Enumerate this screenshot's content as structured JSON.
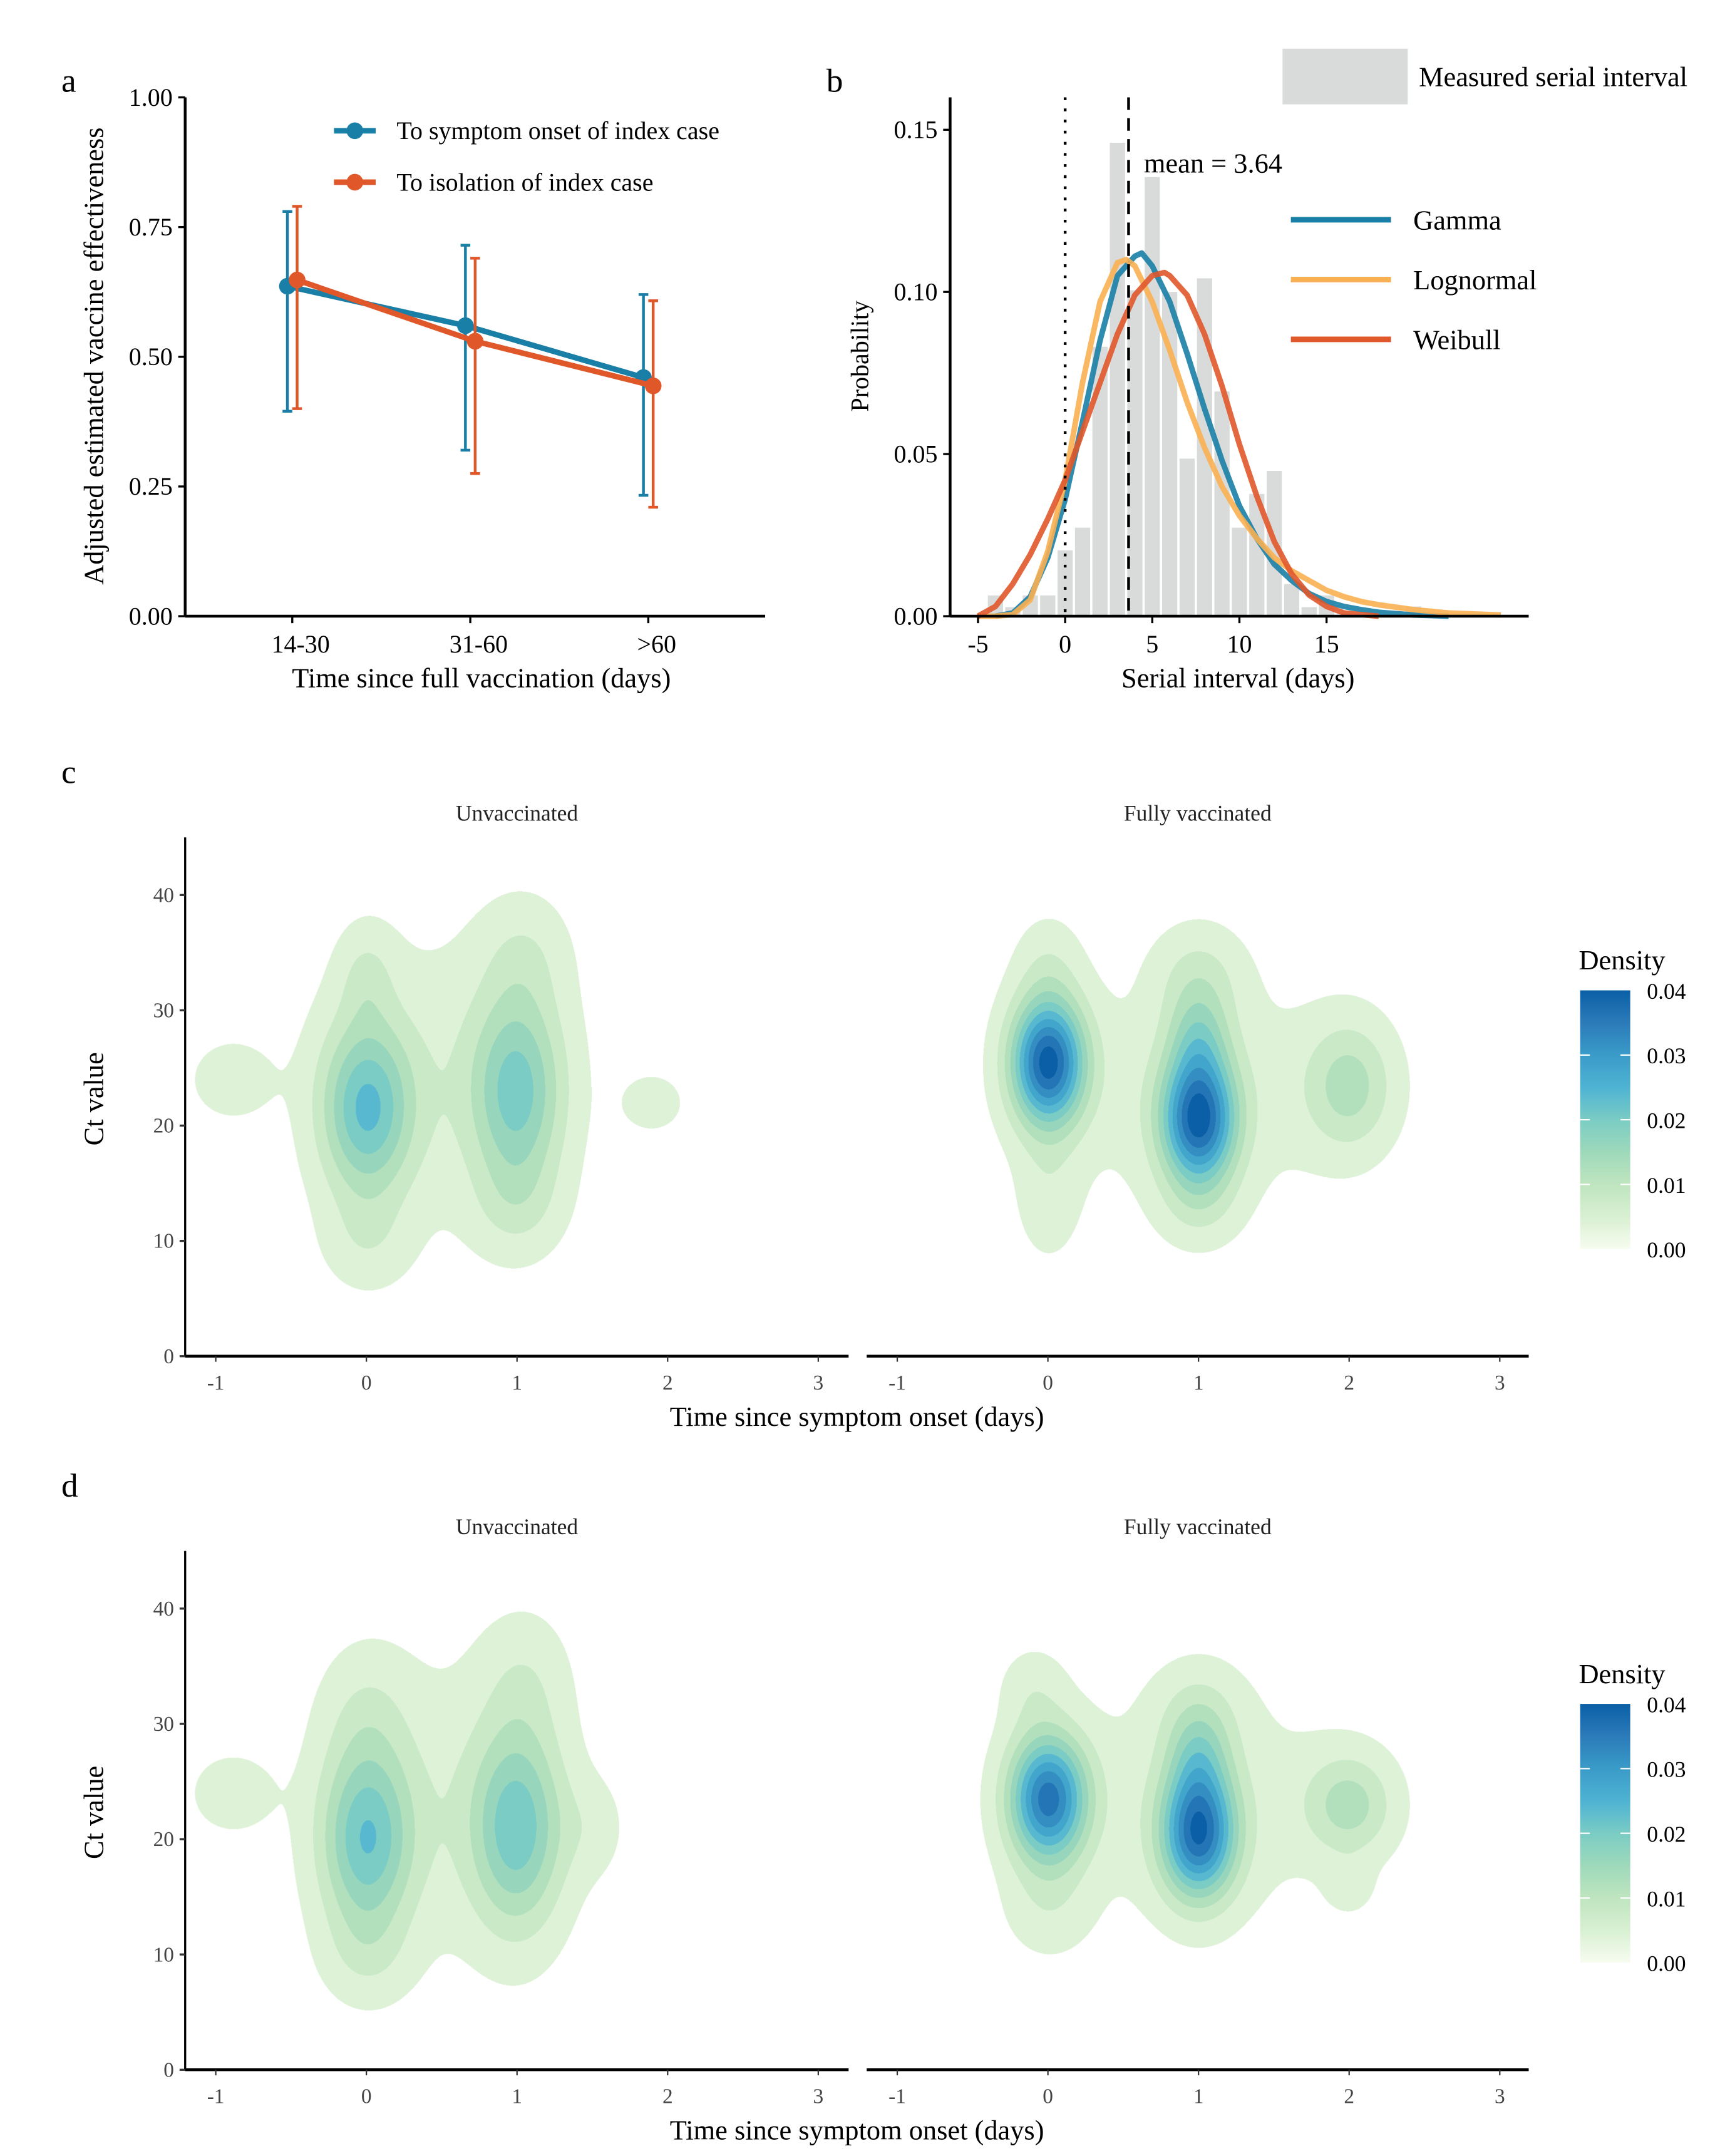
{
  "panel_labels": [
    "a",
    "b",
    "c",
    "d"
  ],
  "chart_data": [
    {
      "type": "line",
      "panel": "a",
      "xlabel": "Time since full vaccination (days)",
      "ylabel": "Adjusted estimated vaccine effectiveness",
      "categories": [
        "14-30",
        "31-60",
        ">60"
      ],
      "ylim": [
        0,
        1
      ],
      "yticks": [
        "0.00",
        "0.25",
        "0.50",
        "0.75",
        "1.00"
      ],
      "legend_position": "top-right",
      "series": [
        {
          "name": "To symptom onset of index case",
          "color": "#1a7fa6",
          "values": [
            0.636,
            0.56,
            0.46
          ],
          "lower": [
            0.395,
            0.32,
            0.233
          ],
          "upper": [
            0.78,
            0.715,
            0.62
          ]
        },
        {
          "name": "To isolation of index case",
          "color": "#e0572a",
          "values": [
            0.648,
            0.53,
            0.444
          ],
          "lower": [
            0.4,
            0.275,
            0.21
          ],
          "upper": [
            0.79,
            0.69,
            0.608
          ]
        }
      ]
    },
    {
      "type": "bar+line",
      "panel": "b",
      "xlabel": "Serial interval (days)",
      "ylabel": "Probability",
      "xlim": [
        -6.6,
        26.6
      ],
      "ylim": [
        0,
        0.16
      ],
      "xticks": [
        "-5",
        "0",
        "5",
        "10",
        "15"
      ],
      "yticks": [
        "0.00",
        "0.05",
        "0.10",
        "0.15"
      ],
      "histogram": {
        "name": "Measured serial interval",
        "color": "#d9dbdb",
        "bins": [
          -4,
          -3,
          -2,
          -1,
          0,
          1,
          2,
          3,
          4,
          5,
          6,
          7,
          8,
          9,
          10,
          11,
          12,
          13,
          14,
          15,
          20
        ],
        "values": [
          0.0064,
          0.0028,
          0.0064,
          0.0064,
          0.0203,
          0.0273,
          0.0831,
          0.146,
          0.1005,
          0.1354,
          0.1,
          0.0486,
          0.1042,
          0.0693,
          0.0273,
          0.0377,
          0.0448,
          0.0099,
          0.0028,
          0.0064,
          0.003
        ]
      },
      "mean_line": {
        "value": 3.64,
        "label": "mean = 3.64"
      },
      "zero_line": 0,
      "series": [
        {
          "name": "Gamma",
          "color": "#1a7fa6",
          "x": [
            -4,
            -3,
            -2,
            -1,
            0,
            1,
            2,
            3,
            4,
            4.4,
            5,
            6,
            7,
            8,
            9,
            10,
            11,
            12,
            13,
            14,
            15,
            16,
            17,
            18,
            20,
            22
          ],
          "y": [
            0,
            0.001,
            0.006,
            0.018,
            0.036,
            0.06,
            0.085,
            0.105,
            0.111,
            0.112,
            0.108,
            0.097,
            0.081,
            0.064,
            0.048,
            0.034,
            0.024,
            0.016,
            0.011,
            0.007,
            0.0045,
            0.003,
            0.002,
            0.0012,
            0.0004,
            0
          ]
        },
        {
          "name": "Lognormal",
          "color": "#f9b052",
          "x": [
            -5,
            -4,
            -3,
            -2,
            -1,
            0,
            1,
            2,
            3,
            3.5,
            4,
            5,
            6,
            7,
            8,
            9,
            10,
            11,
            12,
            13,
            14,
            15,
            16,
            17,
            18,
            20,
            22,
            25
          ],
          "y": [
            0,
            0,
            0.0005,
            0.005,
            0.02,
            0.042,
            0.072,
            0.097,
            0.109,
            0.11,
            0.108,
            0.097,
            0.082,
            0.066,
            0.052,
            0.04,
            0.031,
            0.024,
            0.018,
            0.014,
            0.011,
            0.008,
            0.006,
            0.0045,
            0.0035,
            0.002,
            0.001,
            0.0004
          ]
        },
        {
          "name": "Weibull",
          "color": "#e0572a",
          "x": [
            -5,
            -4,
            -3,
            -2,
            -1,
            0,
            1,
            2,
            3,
            4,
            5,
            5.7,
            6,
            7,
            8,
            9,
            10,
            11,
            12,
            13,
            14,
            15,
            16,
            18
          ],
          "y": [
            0,
            0.003,
            0.01,
            0.019,
            0.03,
            0.042,
            0.057,
            0.072,
            0.087,
            0.099,
            0.105,
            0.106,
            0.105,
            0.099,
            0.087,
            0.071,
            0.053,
            0.037,
            0.023,
            0.013,
            0.0065,
            0.003,
            0.001,
            0
          ]
        }
      ]
    },
    {
      "type": "heatmap",
      "panel": "c",
      "subtype": "2d density contour",
      "xlabel": "Time since symptom onset (days)",
      "ylabel": "Ct value",
      "xlim": [
        -1.2,
        3.2
      ],
      "ylim": [
        0,
        45
      ],
      "xticks": [
        "-1",
        "0",
        "1",
        "2",
        "3"
      ],
      "yticks": [
        "0",
        "10",
        "20",
        "30",
        "40"
      ],
      "legend": {
        "title": "Density",
        "ticks": [
          "0.00",
          "0.01",
          "0.02",
          "0.03",
          "0.04"
        ],
        "range": [
          0,
          0.04
        ]
      },
      "facets": [
        {
          "title": "Unvaccinated",
          "peak_density": 0.022,
          "kde_components": [
            [
              0,
              21.5,
              0.21,
              5.2,
              0.021
            ],
            [
              1,
              23,
              0.21,
              6,
              0.018
            ],
            [
              0.5,
              24,
              0.55,
              9,
              0.004
            ],
            [
              0,
              33,
              0.13,
              3,
              0.005
            ],
            [
              1.05,
              35,
              0.2,
              3.5,
              0.004
            ],
            [
              -0.9,
              24,
              0.2,
              2.5,
              0.004
            ],
            [
              1.9,
              22,
              0.15,
              1.8,
              0.004
            ],
            [
              0,
              10,
              0.2,
              3,
              0.004
            ],
            [
              1,
              13,
              0.2,
              3,
              0.004
            ]
          ]
        },
        {
          "title": "Fully vaccinated",
          "peak_density": 0.04,
          "kde_components": [
            [
              0,
              25.5,
              0.17,
              3.8,
              0.039
            ],
            [
              1,
              20.5,
              0.17,
              3.8,
              0.037
            ],
            [
              1,
              27.5,
              0.14,
              3,
              0.011
            ],
            [
              2,
              23.5,
              0.2,
              3.8,
              0.011
            ],
            [
              0,
              14,
              0.15,
              4,
              0.004
            ],
            [
              0,
              34,
              0.15,
              3,
              0.004
            ],
            [
              1,
              33,
              0.2,
              3,
              0.006
            ],
            [
              1,
              23,
              0.7,
              7,
              0.004
            ],
            [
              1,
              13,
              0.18,
              2.5,
              0.004
            ]
          ]
        }
      ]
    },
    {
      "type": "heatmap",
      "panel": "d",
      "subtype": "2d density contour",
      "xlabel": "Time since symptom onset (days)",
      "ylabel": "Ct value",
      "xlim": [
        -1.2,
        3.2
      ],
      "ylim": [
        0,
        45
      ],
      "xticks": [
        "-1",
        "0",
        "1",
        "2",
        "3"
      ],
      "yticks": [
        "0",
        "10",
        "20",
        "30",
        "40"
      ],
      "legend": {
        "title": "Density",
        "ticks": [
          "0.00",
          "0.01",
          "0.02",
          "0.03",
          "0.04"
        ],
        "range": [
          0,
          0.04
        ]
      },
      "facets": [
        {
          "title": "Unvaccinated",
          "peak_density": 0.022,
          "kde_components": [
            [
              0,
              20,
              0.21,
              5.5,
              0.02
            ],
            [
              1,
              21,
              0.21,
              6,
              0.019
            ],
            [
              0.5,
              23,
              0.55,
              9,
              0.004
            ],
            [
              0,
              31,
              0.2,
              4,
              0.004
            ],
            [
              1.05,
              34,
              0.2,
              4,
              0.004
            ],
            [
              -0.9,
              24,
              0.2,
              2.5,
              0.004
            ],
            [
              1.5,
              21,
              0.15,
              3,
              0.003
            ],
            [
              0,
              10,
              0.2,
              3,
              0.004
            ]
          ]
        },
        {
          "title": "Fully vaccinated",
          "peak_density": 0.036,
          "kde_components": [
            [
              0,
              23.5,
              0.18,
              3.8,
              0.035
            ],
            [
              1,
              20.5,
              0.17,
              3.8,
              0.035
            ],
            [
              1,
              27,
              0.14,
              3,
              0.01
            ],
            [
              2,
              23,
              0.2,
              3,
              0.011
            ],
            [
              -0.1,
              33,
              0.15,
              2.5,
              0.004
            ],
            [
              1,
              31,
              0.2,
              3,
              0.005
            ],
            [
              2,
              16,
              0.1,
              1.5,
              0.004
            ],
            [
              1,
              23,
              0.7,
              7,
              0.004
            ],
            [
              0,
              14,
              0.2,
              3,
              0.004
            ]
          ]
        }
      ]
    }
  ]
}
